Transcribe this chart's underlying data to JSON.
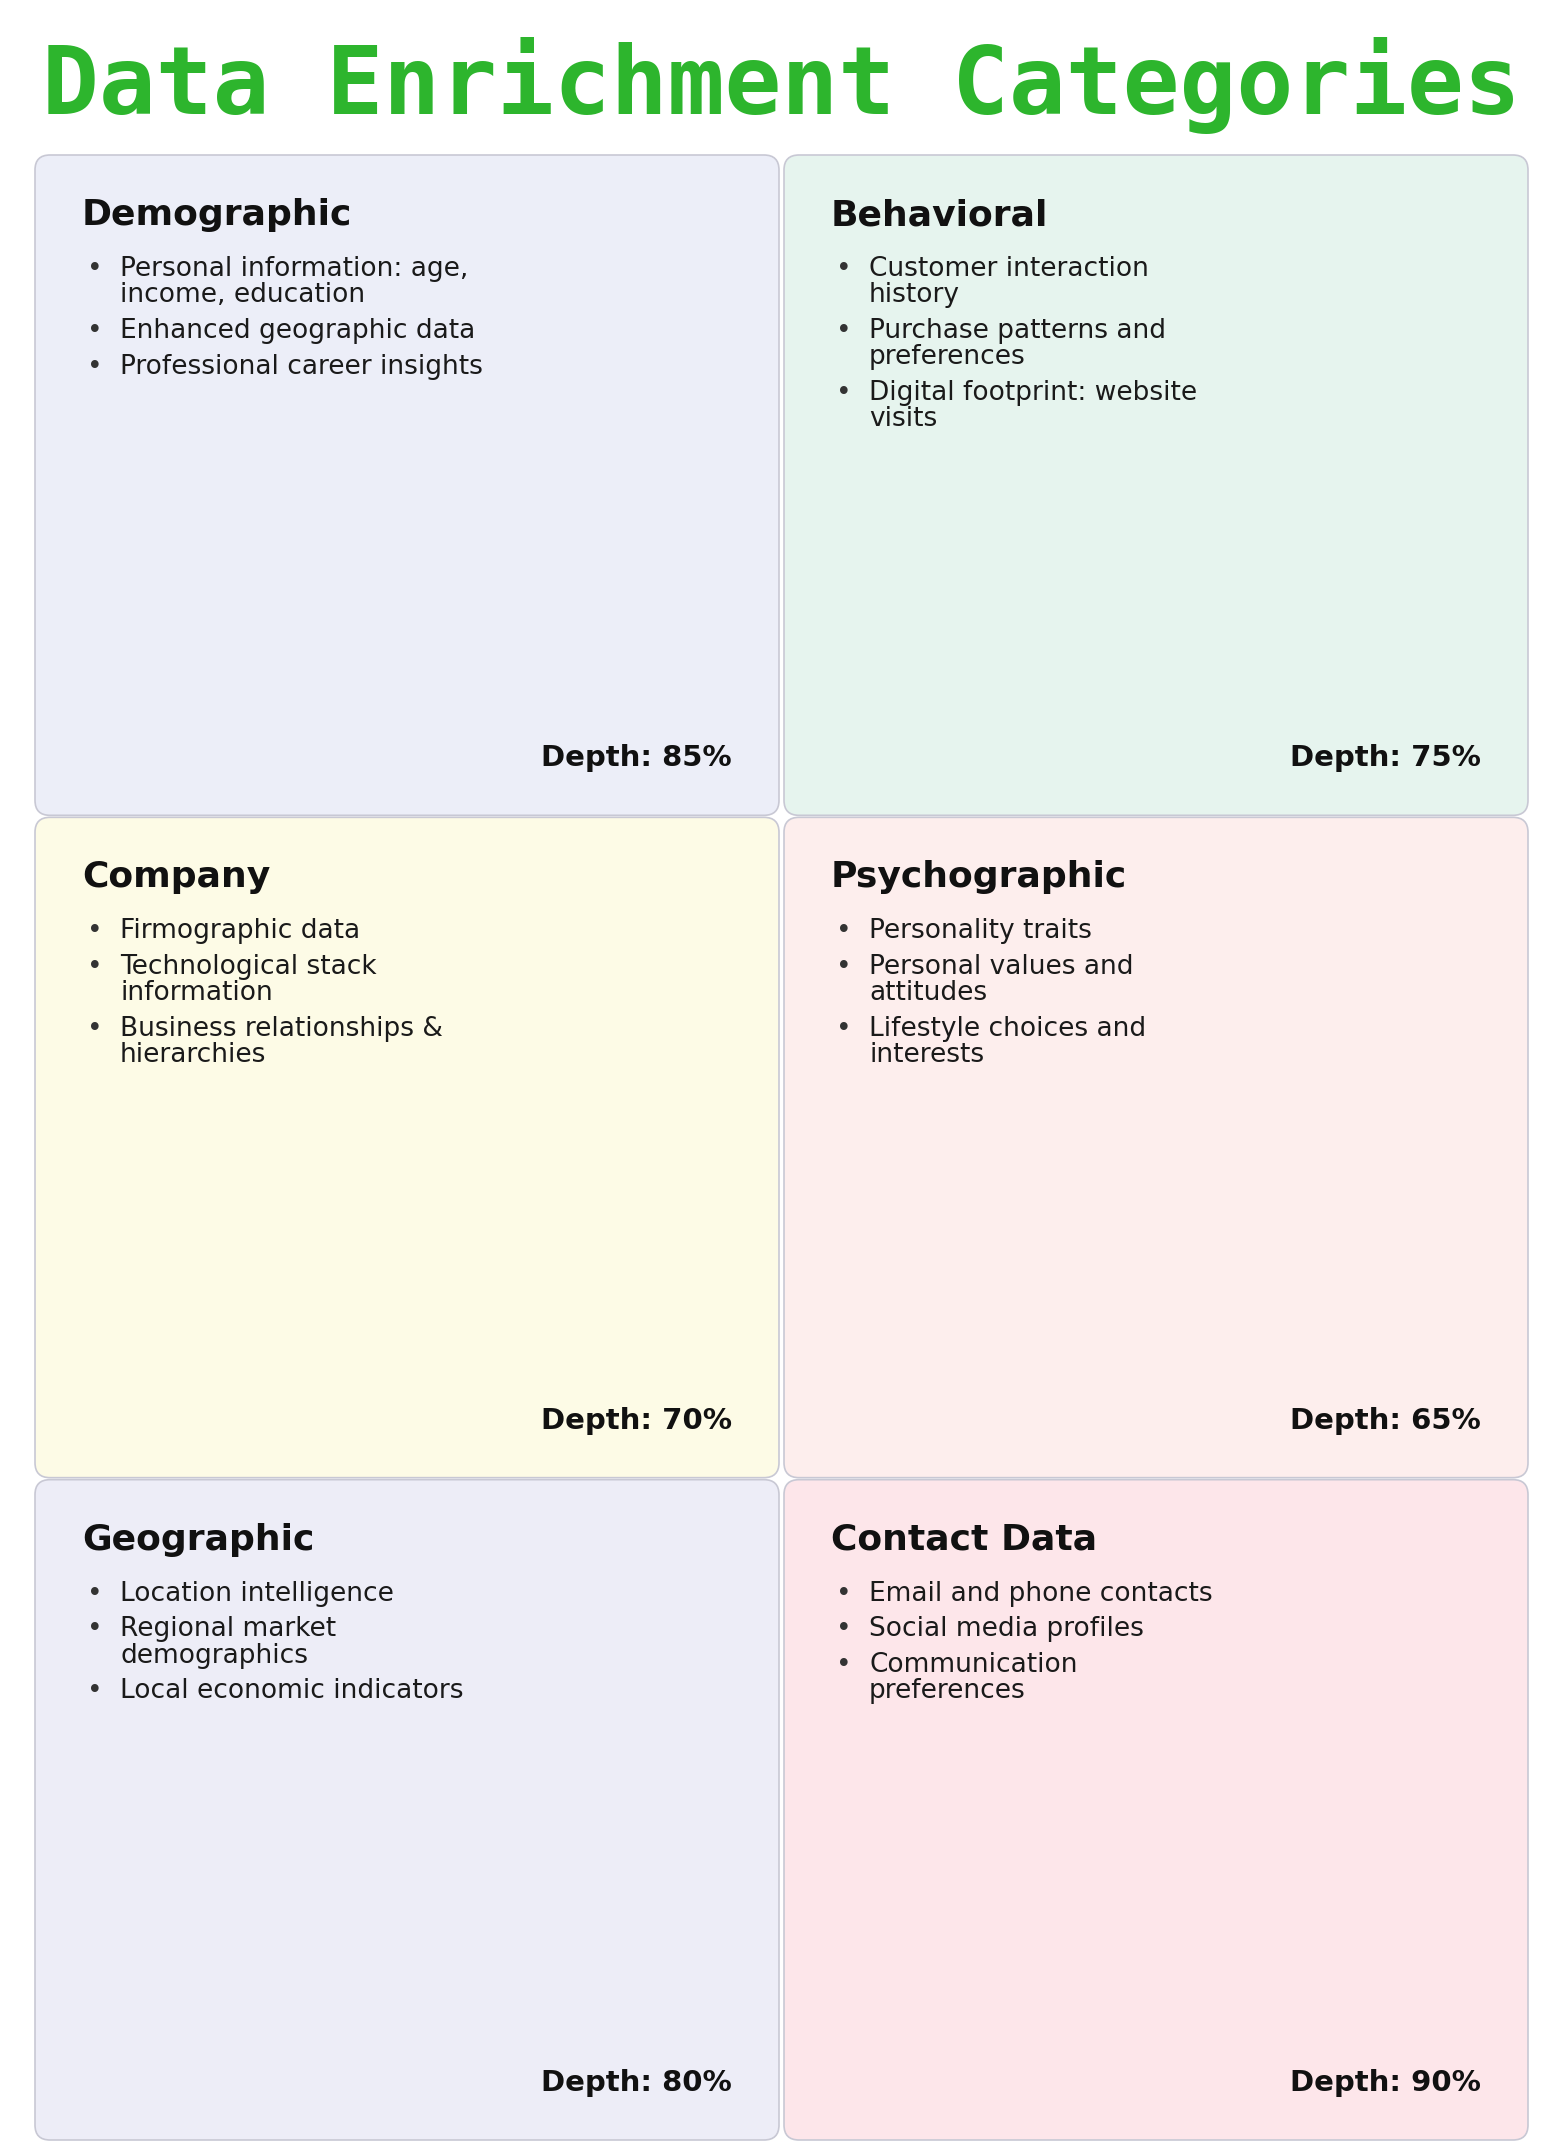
{
  "title": "Data Enrichment Categories",
  "title_color": "#2db52d",
  "background_color": "#ffffff",
  "cards": [
    {
      "title": "Demographic",
      "bg_color": "#eceef8",
      "items": [
        "Personal information: age,\nincome, education",
        "Enhanced geographic data",
        "Professional career insights"
      ],
      "depth": "Depth: 85%",
      "row": 0,
      "col": 0
    },
    {
      "title": "Behavioral",
      "bg_color": "#e6f4ee",
      "items": [
        "Customer interaction\nhistory",
        "Purchase patterns and\npreferences",
        "Digital footprint: website\nvisits"
      ],
      "depth": "Depth: 75%",
      "row": 0,
      "col": 1
    },
    {
      "title": "Company",
      "bg_color": "#fdfbe6",
      "items": [
        "Firmographic data",
        "Technological stack\ninformation",
        "Business relationships &\nhierarchies"
      ],
      "depth": "Depth: 70%",
      "row": 1,
      "col": 0
    },
    {
      "title": "Psychographic",
      "bg_color": "#fdeeed",
      "items": [
        "Personality traits",
        "Personal values and\nattitudes",
        "Lifestyle choices and\ninterests"
      ],
      "depth": "Depth: 65%",
      "row": 1,
      "col": 1
    },
    {
      "title": "Geographic",
      "bg_color": "#ededf7",
      "items": [
        "Location intelligence",
        "Regional market\ndemographics",
        "Local economic indicators"
      ],
      "depth": "Depth: 80%",
      "row": 2,
      "col": 0
    },
    {
      "title": "Contact Data",
      "bg_color": "#fde6ea",
      "items": [
        "Email and phone contacts",
        "Social media profiles",
        "Communication\npreferences"
      ],
      "depth": "Depth: 90%",
      "row": 2,
      "col": 1
    }
  ]
}
